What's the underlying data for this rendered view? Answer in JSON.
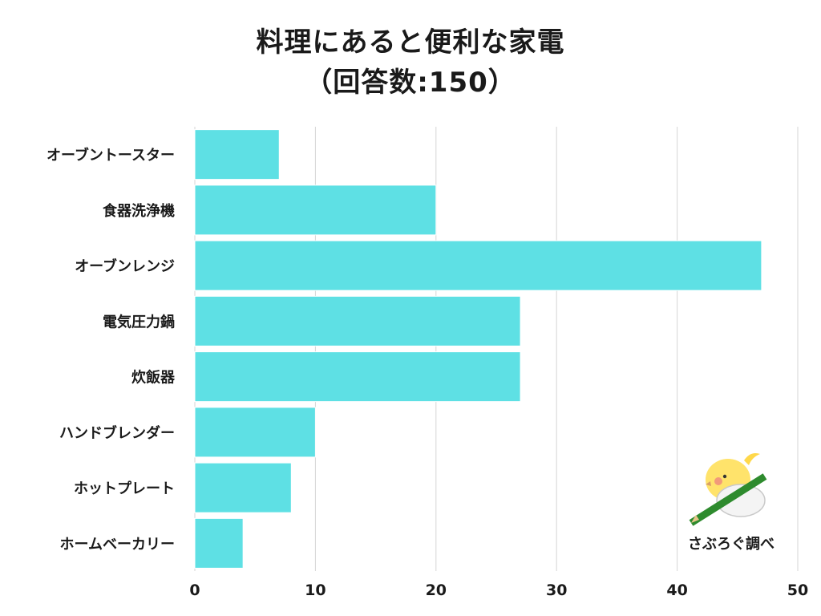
{
  "header": {
    "title": "料理にあると便利な家電",
    "subtitle": "（回答数:150）"
  },
  "credit": "さぶろぐ調べ",
  "colors": {
    "bar": "#5ee0e4",
    "grid": "#d6d6d6",
    "text": "#1a1a1a"
  },
  "chart_data": {
    "type": "bar",
    "orientation": "horizontal",
    "title": "料理にあると便利な家電",
    "subtitle": "（回答数:150）",
    "categories": [
      "オーブントースター",
      "食器洗浄機",
      "オーブンレンジ",
      "電気圧力鍋",
      "炊飯器",
      "ハンドブレンダー",
      "ホットプレート",
      "ホームベーカリー"
    ],
    "values": [
      7,
      20,
      47,
      27,
      27,
      10,
      8,
      4
    ],
    "xlim": [
      0,
      50
    ],
    "xticks": [
      "0",
      "10",
      "20",
      "30",
      "40",
      "50"
    ],
    "grid": "vertical"
  }
}
